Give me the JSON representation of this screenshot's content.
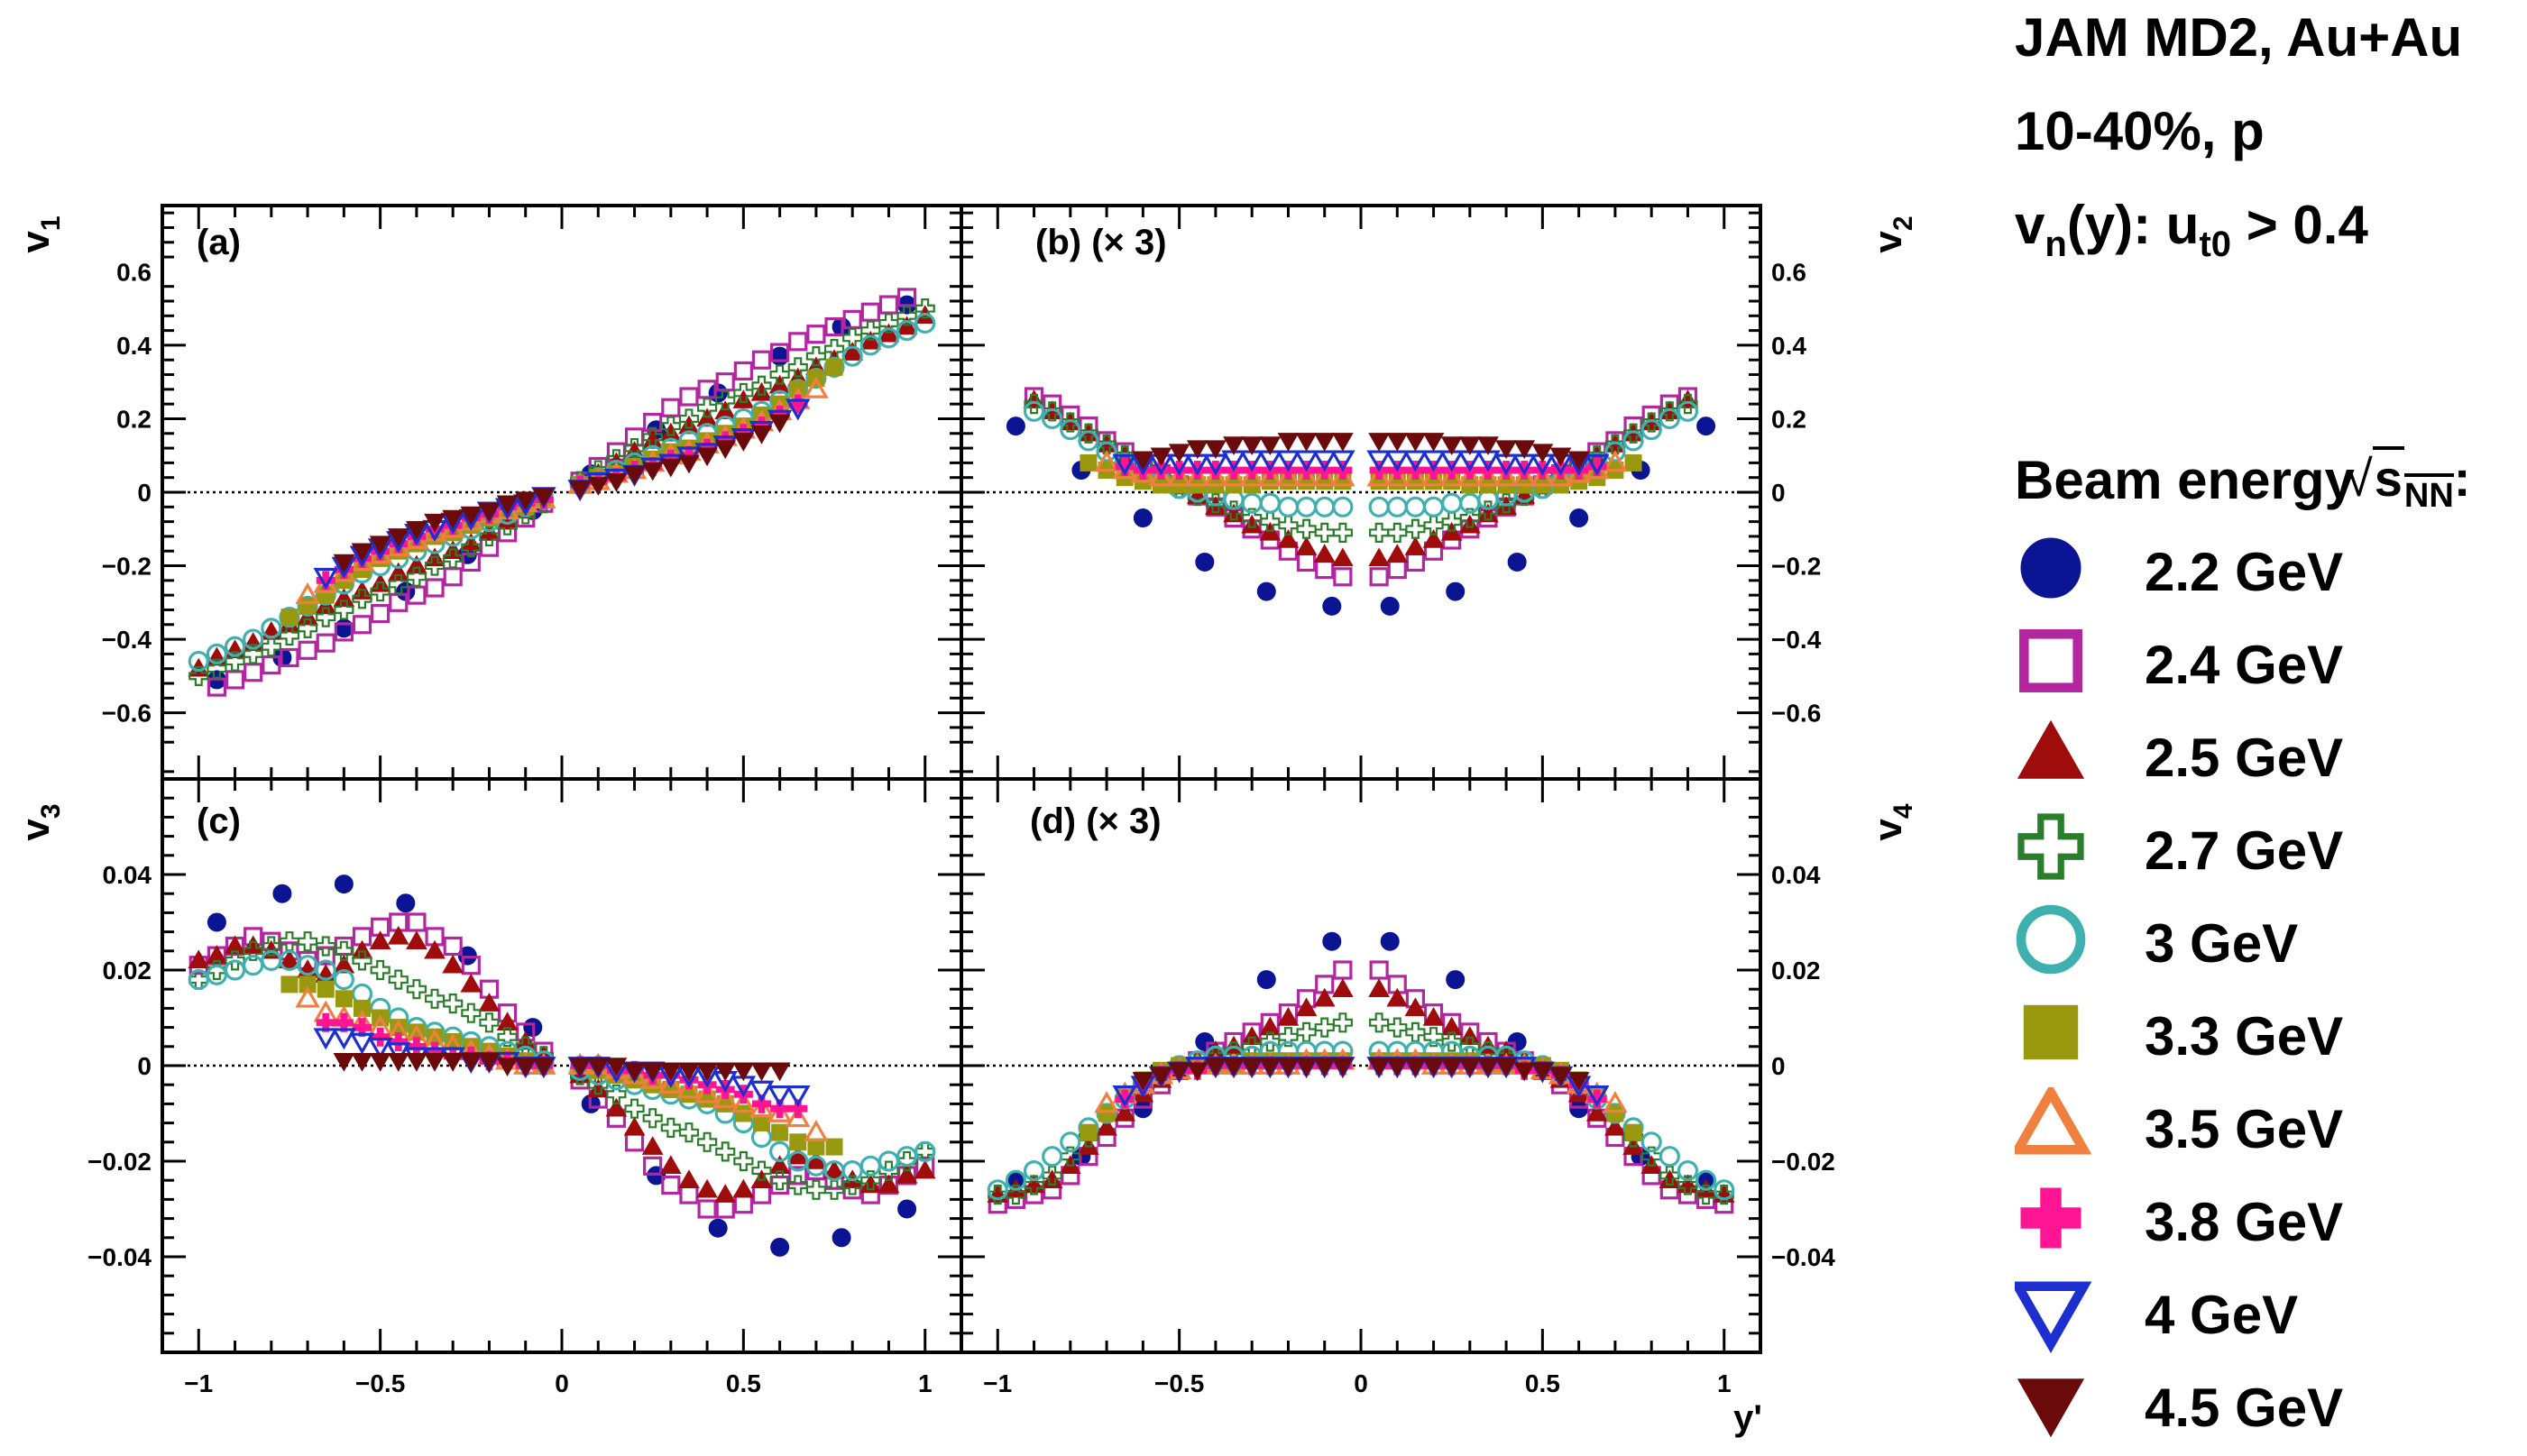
{
  "info": {
    "line1": "JAM MD2, Au+Au",
    "line2": "10-40%, p",
    "line3_a": "v",
    "line3_sub1": "n",
    "line3_b": "(y): u",
    "line3_sub2": "t0",
    "line3_c": " > 0.4"
  },
  "legend": {
    "header_text": "Beam energy",
    "header_sqrt": "s",
    "header_sqrt_sub": "NN",
    "header_colon": ":",
    "entries": [
      {
        "label": "2.2 GeV",
        "marker": "circle",
        "filled": true,
        "color": "#0b1594"
      },
      {
        "label": "2.4 GeV",
        "marker": "square",
        "filled": false,
        "color": "#b2279f"
      },
      {
        "label": "2.5 GeV",
        "marker": "triangle-up",
        "filled": true,
        "color": "#9e0c0c"
      },
      {
        "label": "2.7 GeV",
        "marker": "cross",
        "filled": false,
        "color": "#2a7d2a"
      },
      {
        "label": "3 GeV",
        "marker": "circle",
        "filled": false,
        "color": "#3fb0b0"
      },
      {
        "label": "3.3 GeV",
        "marker": "square",
        "filled": true,
        "color": "#999910"
      },
      {
        "label": "3.5 GeV",
        "marker": "triangle-up",
        "filled": false,
        "color": "#f08040"
      },
      {
        "label": "3.8 GeV",
        "marker": "cross",
        "filled": true,
        "color": "#ff1493"
      },
      {
        "label": "4 GeV",
        "marker": "triangle-down",
        "filled": false,
        "color": "#1e2fd0"
      },
      {
        "label": "4.5 GeV",
        "marker": "triangle-down",
        "filled": true,
        "color": "#6b0a0a"
      }
    ]
  },
  "chart_data": {
    "type": "scatter",
    "xlabel": "y'",
    "xlim": [
      -1.1,
      1.1
    ],
    "xticks": [
      -1,
      -0.5,
      0,
      0.5,
      1
    ],
    "xtick_labels": [
      "−1",
      "−0.5",
      "0",
      "0.5",
      "1"
    ],
    "x_symmetric": [
      0.05,
      0.1,
      0.15,
      0.2,
      0.25,
      0.3,
      0.35,
      0.4,
      0.45,
      0.5,
      0.55,
      0.6,
      0.65,
      0.7,
      0.75,
      0.8,
      0.85,
      0.9,
      0.95,
      1.0
    ],
    "x_sparse_2p2": [
      0.08,
      0.26,
      0.43,
      0.6,
      0.77,
      0.95
    ],
    "panels": [
      {
        "id": "a",
        "label": "(a)",
        "ylabel": "v",
        "ylabel_sub": "1",
        "ylim": [
          -0.78,
          0.78
        ],
        "yticks": [
          -0.6,
          -0.4,
          -0.2,
          0,
          0.2,
          0.4,
          0.6
        ],
        "ytick_labels": [
          "−0.6",
          "−0.4",
          "−0.2",
          "0",
          "0.2",
          "0.4",
          "0.6"
        ],
        "tick_side": "left",
        "symmetry": "odd",
        "scale_note": "",
        "series": {
          "2.2 GeV": [
            0.05,
            0.17,
            0.27,
            0.37,
            0.45,
            0.51
          ],
          "2.4 GeV": [
            0.03,
            0.07,
            0.11,
            0.15,
            0.19,
            0.23,
            0.26,
            0.28,
            0.3,
            0.33,
            0.36,
            0.38,
            0.41,
            0.43,
            0.45,
            0.47,
            0.49,
            0.51,
            0.53
          ],
          "2.5 GeV": [
            0.02,
            0.05,
            0.08,
            0.11,
            0.14,
            0.16,
            0.18,
            0.2,
            0.22,
            0.25,
            0.27,
            0.29,
            0.31,
            0.34,
            0.36,
            0.38,
            0.41,
            0.43,
            0.45,
            0.48
          ],
          "2.7 GeV": [
            0.03,
            0.06,
            0.09,
            0.12,
            0.15,
            0.18,
            0.2,
            0.23,
            0.25,
            0.27,
            0.29,
            0.32,
            0.34,
            0.37,
            0.39,
            0.42,
            0.44,
            0.46,
            0.48,
            0.5
          ],
          "3 GeV": [
            0.02,
            0.04,
            0.06,
            0.08,
            0.1,
            0.12,
            0.14,
            0.16,
            0.18,
            0.2,
            0.22,
            0.25,
            0.28,
            0.31,
            0.34,
            0.37,
            0.4,
            0.42,
            0.44,
            0.46
          ],
          "3.3 GeV": [
            0.02,
            0.04,
            0.05,
            0.07,
            0.09,
            0.11,
            0.12,
            0.14,
            0.16,
            0.18,
            0.21,
            0.24,
            0.28,
            0.31,
            0.34
          ],
          "3.5 GeV": [
            0.02,
            0.03,
            0.05,
            0.06,
            0.08,
            0.1,
            0.11,
            0.13,
            0.15,
            0.17,
            0.19,
            0.22,
            0.25,
            0.28
          ],
          "3.8 GeV": [
            0.02,
            0.03,
            0.04,
            0.06,
            0.07,
            0.09,
            0.1,
            0.12,
            0.14,
            0.16,
            0.18,
            0.21,
            0.24
          ],
          "4 GeV": [
            0.01,
            0.03,
            0.04,
            0.05,
            0.07,
            0.08,
            0.1,
            0.11,
            0.13,
            0.15,
            0.17,
            0.2,
            0.23
          ],
          "4.5 GeV": [
            0.01,
            0.02,
            0.03,
            0.05,
            0.06,
            0.07,
            0.08,
            0.1,
            0.12,
            0.14,
            0.16,
            0.19
          ]
        }
      },
      {
        "id": "b",
        "label": "(b)",
        "ylabel": "v",
        "ylabel_sub": "2",
        "ylim": [
          -0.78,
          0.78
        ],
        "yticks": [
          -0.6,
          -0.4,
          -0.2,
          0,
          0.2,
          0.4,
          0.6
        ],
        "ytick_labels": [
          "−0.6",
          "−0.4",
          "−0.2",
          "0",
          "0.2",
          "0.4",
          "0.6"
        ],
        "tick_side": "right",
        "symmetry": "even",
        "scale_note": "(× 3)",
        "series": {
          "2.2 GeV": [
            -0.31,
            -0.27,
            -0.19,
            -0.07,
            0.06,
            0.18
          ],
          "2.4 GeV": [
            -0.23,
            -0.21,
            -0.19,
            -0.16,
            -0.13,
            -0.1,
            -0.07,
            -0.04,
            -0.01,
            0.02,
            0.05,
            0.08,
            0.11,
            0.14,
            0.18,
            0.21,
            0.24,
            0.26
          ],
          "2.5 GeV": [
            -0.18,
            -0.17,
            -0.15,
            -0.13,
            -0.11,
            -0.09,
            -0.06,
            -0.04,
            -0.01,
            0.02,
            0.04,
            0.07,
            0.1,
            0.13,
            0.16,
            0.19,
            0.22,
            0.25
          ],
          "2.7 GeV": [
            -0.11,
            -0.11,
            -0.1,
            -0.09,
            -0.08,
            -0.07,
            -0.05,
            -0.03,
            -0.01,
            0.01,
            0.04,
            0.07,
            0.1,
            0.13,
            0.16,
            0.19,
            0.22,
            0.24
          ],
          "3 GeV": [
            -0.04,
            -0.04,
            -0.04,
            -0.04,
            -0.03,
            -0.03,
            -0.02,
            -0.01,
            0.0,
            0.01,
            0.03,
            0.05,
            0.08,
            0.11,
            0.14,
            0.17,
            0.2,
            0.22
          ],
          "3.3 GeV": [
            0.03,
            0.03,
            0.03,
            0.03,
            0.03,
            0.02,
            0.02,
            0.02,
            0.02,
            0.02,
            0.02,
            0.03,
            0.04,
            0.06,
            0.08
          ],
          "3.5 GeV": [
            0.04,
            0.04,
            0.04,
            0.04,
            0.04,
            0.04,
            0.04,
            0.04,
            0.04,
            0.04,
            0.04,
            0.05,
            0.06,
            0.08
          ],
          "3.8 GeV": [
            0.06,
            0.06,
            0.06,
            0.06,
            0.06,
            0.06,
            0.06,
            0.06,
            0.06,
            0.06,
            0.06,
            0.06,
            0.07
          ],
          "4 GeV": [
            0.09,
            0.09,
            0.09,
            0.09,
            0.09,
            0.09,
            0.09,
            0.08,
            0.08,
            0.08,
            0.08,
            0.08,
            0.08
          ],
          "4.5 GeV": [
            0.14,
            0.14,
            0.14,
            0.14,
            0.13,
            0.13,
            0.13,
            0.12,
            0.12,
            0.11,
            0.1,
            0.09
          ]
        }
      },
      {
        "id": "c",
        "label": "(c)",
        "ylabel": "v",
        "ylabel_sub": "3",
        "ylim": [
          -0.06,
          0.06
        ],
        "yticks": [
          -0.04,
          -0.02,
          0,
          0.02,
          0.04
        ],
        "ytick_labels": [
          "−0.04",
          "−0.02",
          "0",
          "0.02",
          "0.04"
        ],
        "tick_side": "left",
        "symmetry": "odd",
        "scale_note": "",
        "series": {
          "2.2 GeV": [
            -0.008,
            -0.023,
            -0.034,
            -0.038,
            -0.036,
            -0.03
          ],
          "2.4 GeV": [
            -0.003,
            -0.007,
            -0.011,
            -0.016,
            -0.021,
            -0.025,
            -0.027,
            -0.03,
            -0.03,
            -0.029,
            -0.027,
            -0.025,
            -0.023,
            -0.022,
            -0.024,
            -0.026,
            -0.027,
            -0.025,
            -0.023,
            -0.021
          ],
          "2.5 GeV": [
            -0.002,
            -0.005,
            -0.009,
            -0.013,
            -0.017,
            -0.021,
            -0.024,
            -0.026,
            -0.027,
            -0.026,
            -0.024,
            -0.021,
            -0.019,
            -0.02,
            -0.022,
            -0.024,
            -0.025,
            -0.025,
            -0.023,
            -0.022
          ],
          "2.7 GeV": [
            -0.002,
            -0.004,
            -0.006,
            -0.009,
            -0.011,
            -0.013,
            -0.014,
            -0.016,
            -0.018,
            -0.02,
            -0.022,
            -0.024,
            -0.025,
            -0.026,
            -0.026,
            -0.025,
            -0.024,
            -0.022,
            -0.02,
            -0.018
          ],
          "3 GeV": [
            -0.001,
            -0.002,
            -0.003,
            -0.004,
            -0.005,
            -0.006,
            -0.007,
            -0.008,
            -0.01,
            -0.012,
            -0.015,
            -0.018,
            -0.02,
            -0.021,
            -0.022,
            -0.022,
            -0.021,
            -0.02,
            -0.019,
            -0.018
          ],
          "3.3 GeV": [
            0.0,
            -0.001,
            -0.002,
            -0.003,
            -0.004,
            -0.005,
            -0.006,
            -0.007,
            -0.008,
            -0.01,
            -0.012,
            -0.014,
            -0.016,
            -0.017,
            -0.017
          ],
          "3.5 GeV": [
            0.0,
            0.0,
            -0.001,
            -0.002,
            -0.003,
            -0.004,
            -0.005,
            -0.006,
            -0.007,
            -0.008,
            -0.009,
            -0.01,
            -0.011,
            -0.014
          ],
          "3.8 GeV": [
            0.0,
            0.0,
            -0.001,
            -0.001,
            -0.002,
            -0.002,
            -0.003,
            -0.004,
            -0.005,
            -0.006,
            -0.008,
            -0.009,
            -0.009
          ],
          "4 GeV": [
            0.0,
            0.0,
            -0.001,
            -0.001,
            -0.001,
            -0.002,
            -0.002,
            -0.002,
            -0.003,
            -0.004,
            -0.005,
            -0.006,
            -0.006
          ],
          "4.5 GeV": [
            0.0,
            0.0,
            0.0,
            -0.001,
            -0.001,
            -0.001,
            -0.001,
            -0.001,
            -0.001,
            -0.001,
            -0.001,
            -0.001
          ]
        }
      },
      {
        "id": "d",
        "label": "(d)",
        "ylabel": "v",
        "ylabel_sub": "4",
        "ylim": [
          -0.06,
          0.06
        ],
        "yticks": [
          -0.04,
          -0.02,
          0,
          0.02,
          0.04
        ],
        "ytick_labels": [
          "−0.04",
          "−0.02",
          "0",
          "0.02",
          "0.04"
        ],
        "tick_side": "right",
        "symmetry": "even",
        "scale_note": "(× 3)",
        "series": {
          "2.2 GeV": [
            0.026,
            0.018,
            0.005,
            -0.009,
            -0.019,
            -0.024
          ],
          "2.4 GeV": [
            0.02,
            0.017,
            0.014,
            0.011,
            0.009,
            0.007,
            0.005,
            0.003,
            0.001,
            -0.001,
            -0.004,
            -0.007,
            -0.011,
            -0.015,
            -0.019,
            -0.023,
            -0.026,
            -0.027,
            -0.028,
            -0.029
          ],
          "2.5 GeV": [
            0.016,
            0.014,
            0.012,
            0.01,
            0.008,
            0.006,
            0.004,
            0.003,
            0.001,
            -0.001,
            -0.003,
            -0.006,
            -0.01,
            -0.013,
            -0.017,
            -0.021,
            -0.024,
            -0.025,
            -0.026,
            -0.027
          ],
          "2.7 GeV": [
            0.009,
            0.008,
            0.007,
            0.006,
            0.005,
            0.004,
            0.003,
            0.002,
            0.001,
            0.0,
            -0.002,
            -0.004,
            -0.007,
            -0.01,
            -0.015,
            -0.019,
            -0.023,
            -0.025,
            -0.027,
            -0.027
          ],
          "3 GeV": [
            0.003,
            0.003,
            0.003,
            0.003,
            0.003,
            0.002,
            0.002,
            0.002,
            0.001,
            0.0,
            -0.002,
            -0.004,
            -0.007,
            -0.01,
            -0.013,
            -0.016,
            -0.019,
            -0.022,
            -0.024,
            -0.026
          ],
          "3.3 GeV": [
            0.001,
            0.001,
            0.001,
            0.001,
            0.001,
            0.001,
            0.0,
            0.0,
            0.0,
            0.0,
            -0.001,
            -0.003,
            -0.006,
            -0.01,
            -0.014
          ],
          "3.5 GeV": [
            0.001,
            0.001,
            0.001,
            0.0,
            0.0,
            0.0,
            0.0,
            0.0,
            0.0,
            -0.001,
            -0.002,
            -0.004,
            -0.006,
            -0.008
          ],
          "3.8 GeV": [
            0.0,
            0.0,
            0.0,
            0.0,
            0.0,
            0.0,
            0.0,
            0.0,
            -0.001,
            -0.001,
            -0.002,
            -0.004,
            -0.007
          ],
          "4 GeV": [
            0.0,
            0.0,
            0.0,
            0.0,
            0.0,
            0.0,
            0.0,
            0.0,
            0.0,
            -0.001,
            -0.002,
            -0.004,
            -0.006
          ],
          "4.5 GeV": [
            0.0,
            0.0,
            0.0,
            0.0,
            0.0,
            0.0,
            0.0,
            0.0,
            -0.001,
            -0.001,
            -0.002,
            -0.003
          ]
        }
      }
    ]
  }
}
